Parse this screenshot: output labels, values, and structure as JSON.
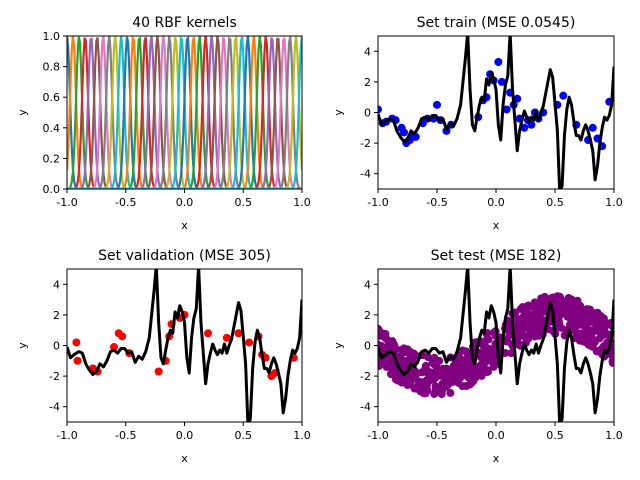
{
  "chart_data": [
    {
      "id": "kernels",
      "type": "line",
      "title": "40 RBF kernels",
      "xlabel": "x",
      "ylabel": "y",
      "xlim": [
        -1.0,
        1.0
      ],
      "ylim": [
        0.0,
        1.0
      ],
      "xticks": [
        "-1.0",
        "-0.5",
        "0.0",
        "0.5",
        "1.0"
      ],
      "yticks": [
        "0.0",
        "0.2",
        "0.4",
        "0.6",
        "0.8",
        "1.0"
      ],
      "kernel_count": 40,
      "kernel_centers": [
        -1.0,
        1.0
      ],
      "kernel_width": 0.025,
      "colors": [
        "#1f77b4",
        "#ff7f0e",
        "#2ca02c",
        "#d62728",
        "#9467bd",
        "#8c564b",
        "#e377c2",
        "#7f7f7f",
        "#bcbd22",
        "#17becf"
      ]
    },
    {
      "id": "train",
      "type": "scatter",
      "title": "Set train (MSE 0.0545)",
      "xlabel": "x",
      "ylabel": "y",
      "xlim": [
        -1.0,
        1.0
      ],
      "ylim": [
        -5,
        5
      ],
      "xticks": [
        "-1.0",
        "-0.5",
        "0.0",
        "0.5",
        "1.0"
      ],
      "yticks": [
        "-4",
        "-2",
        "0",
        "2",
        "4"
      ],
      "point_color": "#0000ff",
      "points": {
        "x": [
          -1.0,
          -0.96,
          -0.93,
          -0.88,
          -0.85,
          -0.8,
          -0.78,
          -0.76,
          -0.73,
          -0.71,
          -0.68,
          -0.62,
          -0.58,
          -0.53,
          -0.5,
          -0.47,
          -0.42,
          -0.38,
          -0.15,
          -0.11,
          -0.08,
          -0.05,
          -0.02,
          0.02,
          0.05,
          0.09,
          0.12,
          0.15,
          0.18,
          0.2,
          0.24,
          0.27,
          0.3,
          0.33,
          0.36,
          0.4,
          0.52,
          0.57,
          0.68,
          0.78,
          0.82,
          0.86,
          0.9,
          0.96
        ],
        "y": [
          0.2,
          -0.7,
          -0.6,
          -0.4,
          -0.5,
          -1.0,
          -1.3,
          -2.0,
          -1.8,
          -1.5,
          -1.6,
          -0.7,
          -0.4,
          -0.4,
          0.5,
          -0.5,
          -1.2,
          -0.8,
          -0.3,
          0.8,
          1.0,
          2.5,
          2.1,
          3.3,
          2.0,
          0.2,
          1.3,
          0.5,
          0.9,
          -0.4,
          -1.0,
          -0.5,
          -0.8,
          0.0,
          -0.4,
          0.0,
          0.5,
          1.1,
          -0.8,
          -1.8,
          -1.0,
          -1.7,
          -2.2,
          0.7
        ]
      },
      "fit_color": "#000000",
      "fit": {
        "x": [
          -1.0,
          -0.97,
          -0.94,
          -0.9,
          -0.87,
          -0.84,
          -0.81,
          -0.78,
          -0.75,
          -0.72,
          -0.69,
          -0.66,
          -0.63,
          -0.6,
          -0.57,
          -0.54,
          -0.51,
          -0.48,
          -0.45,
          -0.42,
          -0.39,
          -0.36,
          -0.33,
          -0.3,
          -0.28,
          -0.26,
          -0.24,
          -0.22,
          -0.2,
          -0.18,
          -0.16,
          -0.14,
          -0.12,
          -0.1,
          -0.09,
          -0.08,
          -0.06,
          -0.04,
          -0.02,
          0.0,
          0.02,
          0.04,
          0.06,
          0.08,
          0.1,
          0.12,
          0.14,
          0.16,
          0.18,
          0.2,
          0.22,
          0.24,
          0.26,
          0.28,
          0.3,
          0.32,
          0.34,
          0.36,
          0.38,
          0.4,
          0.42,
          0.44,
          0.46,
          0.48,
          0.5,
          0.52,
          0.54,
          0.56,
          0.58,
          0.6,
          0.62,
          0.64,
          0.66,
          0.68,
          0.7,
          0.72,
          0.74,
          0.76,
          0.78,
          0.8,
          0.82,
          0.84,
          0.86,
          0.88,
          0.9,
          0.92,
          0.94,
          0.96,
          0.98,
          1.0
        ],
        "y": [
          -0.1,
          -0.8,
          -0.6,
          -0.4,
          -0.5,
          -1.2,
          -1.6,
          -1.9,
          -1.7,
          -1.2,
          -1.4,
          -1.0,
          -0.4,
          -0.3,
          -0.5,
          -0.2,
          -0.2,
          -0.5,
          -0.4,
          -1.1,
          -0.7,
          -0.9,
          -0.4,
          0.5,
          2.0,
          3.5,
          5.2,
          1.5,
          -0.8,
          -1.2,
          -0.3,
          0.5,
          1.0,
          0.8,
          1.5,
          2.2,
          1.8,
          2.6,
          2.2,
          1.5,
          -0.8,
          -1.8,
          0.5,
          1.8,
          2.4,
          5.2,
          1.5,
          -0.5,
          -2.5,
          -1.2,
          -0.5,
          0.1,
          -0.3,
          -0.6,
          -0.3,
          -0.5,
          0.1,
          -0.5,
          0.0,
          0.4,
          1.2,
          2.0,
          2.8,
          2.3,
          0.6,
          -1.2,
          -5.2,
          -4.8,
          -1.5,
          0.2,
          1.0,
          0.5,
          -0.6,
          -1.5,
          -1.5,
          -1.8,
          -1.2,
          -0.8,
          -1.2,
          -1.8,
          -2.5,
          -4.4,
          -3.5,
          -2.0,
          -1.0,
          -0.3,
          -0.5,
          -0.2,
          0.5,
          3.0
        ]
      }
    },
    {
      "id": "validation",
      "type": "scatter",
      "title": "Set validation (MSE 305)",
      "xlabel": "x",
      "ylabel": "y",
      "xlim": [
        -1.0,
        1.0
      ],
      "ylim": [
        -5,
        5
      ],
      "xticks": [
        "-1.0",
        "-0.5",
        "0.0",
        "0.5",
        "1.0"
      ],
      "yticks": [
        "-4",
        "-2",
        "0",
        "2",
        "4"
      ],
      "point_color": "#ff0000",
      "points": {
        "x": [
          -0.92,
          -0.91,
          -0.78,
          -0.74,
          -0.6,
          -0.56,
          -0.53,
          -0.47,
          -0.22,
          -0.16,
          -0.13,
          -0.11,
          -0.04,
          0.0,
          0.2,
          0.36,
          0.46,
          0.55,
          0.63,
          0.66,
          0.69,
          0.74,
          0.77,
          0.93
        ],
        "y": [
          0.2,
          -1.0,
          -1.5,
          -1.7,
          -0.1,
          0.8,
          0.6,
          -0.5,
          -1.7,
          -1.0,
          0.6,
          1.4,
          1.8,
          2.0,
          0.8,
          0.5,
          0.8,
          0.2,
          0.6,
          -0.6,
          -0.8,
          -2.0,
          -1.8,
          -0.8
        ]
      },
      "fit_color": "#000000",
      "fit_same_as": "train"
    },
    {
      "id": "test",
      "type": "scatter",
      "title": "Set test (MSE 182)",
      "xlabel": "x",
      "ylabel": "y",
      "xlim": [
        -1.0,
        1.0
      ],
      "ylim": [
        -5,
        5
      ],
      "xticks": [
        "-1.0",
        "-0.5",
        "0.0",
        "0.5",
        "1.0"
      ],
      "yticks": [
        "-4",
        "-2",
        "0",
        "2",
        "4"
      ],
      "point_color": "#800080",
      "band": {
        "description": "dense test points following a sinusoid with noise",
        "center_amplitude": 2.0,
        "center_frequency_cycles": 1.0,
        "spread": 1.3,
        "count": 600
      },
      "fit_color": "#000000",
      "fit_same_as": "train"
    }
  ]
}
